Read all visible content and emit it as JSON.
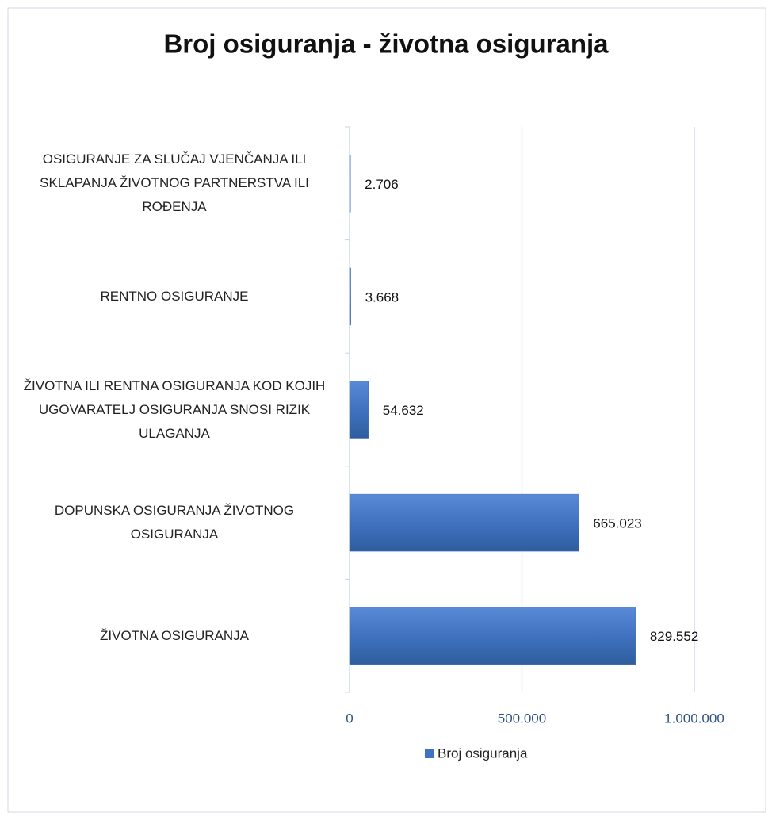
{
  "chart_data": {
    "type": "bar",
    "orientation": "horizontal",
    "title": "Broj osiguranja - životna osiguranja",
    "categories": [
      "OSIGURANJE ZA SLUČAJ VJENČANJA ILI SKLAPANJA ŽIVOTNOG PARTNERSTVA ILI ROĐENJA",
      "RENTNO OSIGURANJE",
      "ŽIVOTNA ILI RENTNA OSIGURANJA KOD KOJIH UGOVARATELJ OSIGURANJA SNOSI RIZIK ULAGANJA",
      "DOPUNSKA OSIGURANJA ŽIVOTNOG OSIGURANJA",
      "ŽIVOTNA OSIGURANJA"
    ],
    "series": [
      {
        "name": "Broj osiguranja",
        "color": "#3f72c0",
        "values": [
          2706,
          3668,
          54632,
          665023,
          829552
        ],
        "value_labels": [
          "2.706",
          "3.668",
          "54.632",
          "665.023",
          "829.552"
        ]
      }
    ],
    "xlim": [
      0,
      1000000
    ],
    "xticks": [
      0,
      {
        "value": 500000,
        "label": "500.000"
      },
      {
        "value": 1000000,
        "label": "1.000.000"
      }
    ],
    "grid": true,
    "legend": "bottom"
  }
}
